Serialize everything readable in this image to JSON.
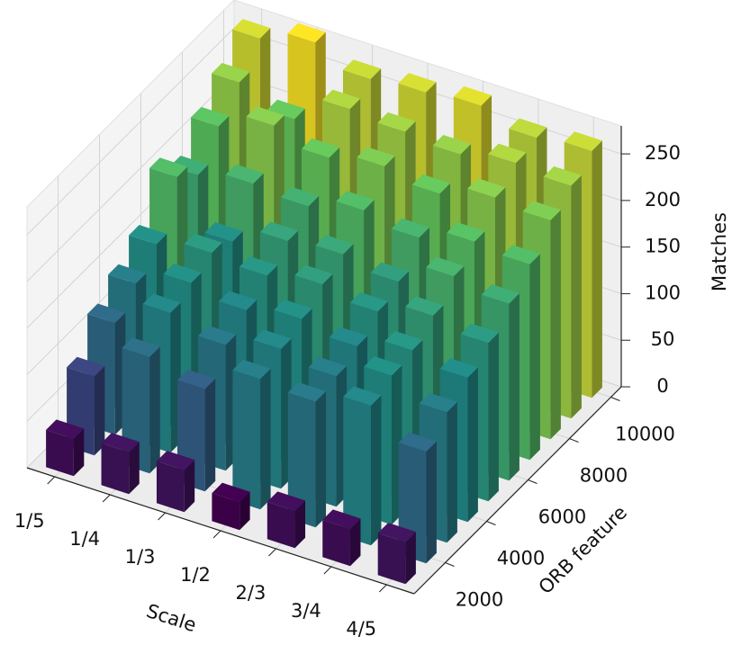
{
  "chart_data": {
    "type": "bar3d",
    "x_label": "Scale",
    "y_label": "ORB feature",
    "z_label": "Matches",
    "categories": [
      "1/5",
      "1/4",
      "1/3",
      "1/2",
      "2/3",
      "3/4",
      "4/5"
    ],
    "y": [
      1000,
      2000,
      3000,
      4000,
      5000,
      6000,
      7000,
      8000,
      9000,
      10000
    ],
    "values": [
      [
        40,
        45,
        45,
        30,
        40,
        40,
        45
      ],
      [
        85,
        125,
        110,
        140,
        135,
        150,
        120
      ],
      [
        120,
        150,
        135,
        150,
        140,
        160,
        140
      ],
      [
        140,
        160,
        150,
        160,
        150,
        165,
        155
      ],
      [
        160,
        170,
        165,
        175,
        165,
        180,
        170
      ],
      [
        210,
        160,
        180,
        185,
        175,
        200,
        190
      ],
      [
        190,
        200,
        195,
        210,
        200,
        215,
        210
      ],
      [
        220,
        240,
        225,
        235,
        225,
        240,
        235
      ],
      [
        245,
        225,
        255,
        250,
        245,
        255,
        250
      ],
      [
        270,
        285,
        265,
        270,
        275,
        260,
        265
      ]
    ],
    "ylim": [
      500,
      10500
    ],
    "yticks": [
      2000,
      4000,
      6000,
      8000,
      10000
    ],
    "zlim": [
      0,
      280
    ],
    "zticks": [
      0,
      50,
      100,
      150,
      200,
      250
    ],
    "colormap": [
      "#440154",
      "#3b528b",
      "#21918c",
      "#5ec962",
      "#fde725"
    ],
    "grid": true
  }
}
